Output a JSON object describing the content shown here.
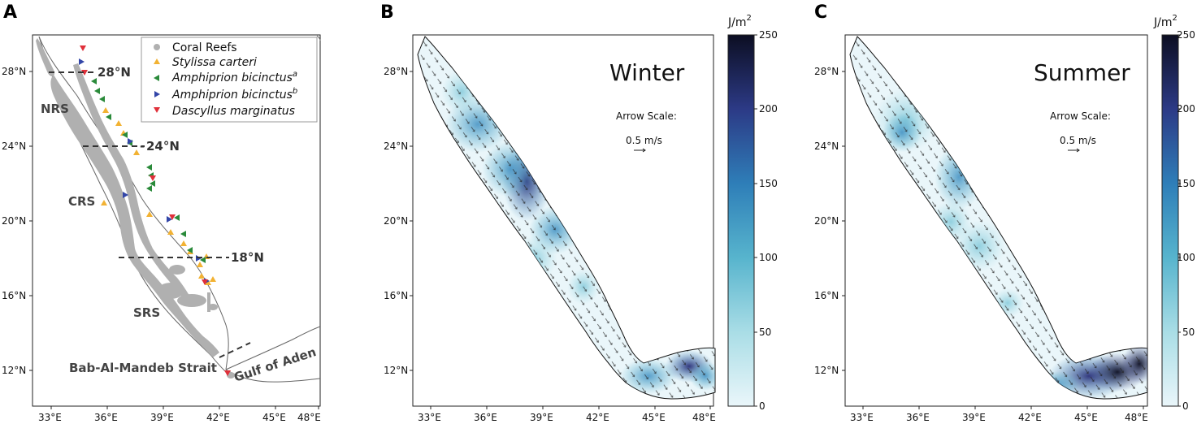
{
  "panel_a": {
    "label": "A",
    "x_ticks": [
      "33°E",
      "36°E",
      "39°E",
      "42°E",
      "45°E",
      "48°E"
    ],
    "y_ticks": [
      "28°N",
      "24°N",
      "20°N",
      "16°N",
      "12°N"
    ],
    "regions": {
      "nrs": "NRS",
      "crs": "CRS",
      "srs": "SRS"
    },
    "boundaries": {
      "b28": "28°N",
      "b24": "24°N",
      "b18": "18°N"
    },
    "strait": "Bab-Al-Mandeb Strait",
    "gulf": "Gulf of Aden",
    "legend": {
      "reefs": "Coral Reefs",
      "stylissa": "Stylissa carteri",
      "amph_a": "Amphiprion bicinctus",
      "amph_a_sup": "a",
      "amph_b": "Amphiprion bicinctus",
      "amph_b_sup": "b",
      "dascyllus": "Dascyllus marginatus"
    },
    "colors": {
      "reefs": "#b0b0b0",
      "stylissa": "#f2b233",
      "amph_a": "#2a8a3a",
      "amph_b": "#3346a8",
      "dascyllus": "#e0303a"
    }
  },
  "panel_b": {
    "label": "B",
    "season": "Winter",
    "arrow_scale": "Arrow Scale:",
    "arrow_value": "0.5 m/s",
    "unit": "J/m",
    "unit_sup": "2",
    "cbar_ticks": [
      "250",
      "200",
      "150",
      "100",
      "50",
      "0"
    ],
    "x_ticks": [
      "33°E",
      "36°E",
      "39°E",
      "42°E",
      "45°E",
      "48°E"
    ],
    "y_ticks": [
      "28°N",
      "24°N",
      "20°N",
      "16°N",
      "12°N"
    ]
  },
  "panel_c": {
    "label": "C",
    "season": "Summer",
    "arrow_scale": "Arrow Scale:",
    "arrow_value": "0.5 m/s",
    "unit": "J/m",
    "unit_sup": "2",
    "cbar_ticks": [
      "250",
      "200",
      "150",
      "100",
      "50",
      "0"
    ],
    "x_ticks": [
      "33°E",
      "36°E",
      "39°E",
      "42°E",
      "45°E",
      "48°E"
    ],
    "y_ticks": [
      "28°N",
      "24°N",
      "20°N",
      "16°N",
      "12°N"
    ]
  }
}
